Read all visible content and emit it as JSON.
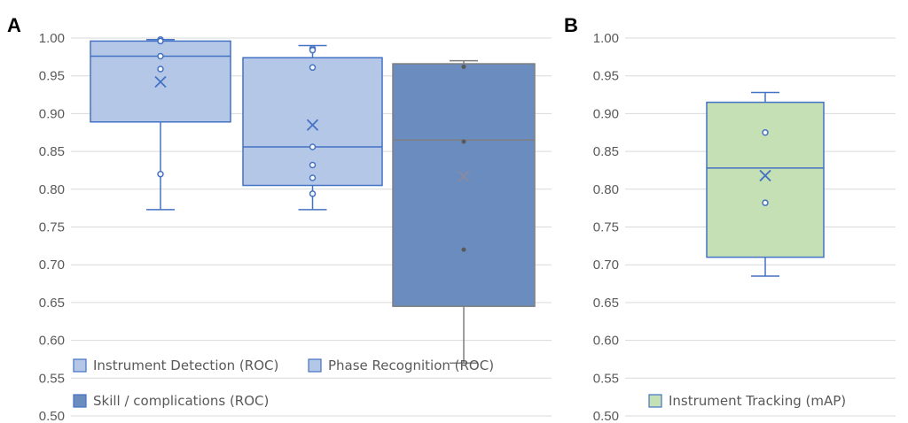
{
  "chart_data": [
    {
      "panel": "A",
      "type": "box",
      "ylim": [
        0.5,
        1.0
      ],
      "y_ticks": [
        "1.00",
        "0.95",
        "0.90",
        "0.85",
        "0.80",
        "0.75",
        "0.70",
        "0.65",
        "0.60",
        "0.55",
        "0.50"
      ],
      "grid": true,
      "legend": "bottom-left",
      "series": [
        {
          "name": "Instrument Detection (ROC)",
          "color": "#4472c4",
          "fill": "#b4c7e7",
          "min": 0.773,
          "q1": 0.889,
          "median": 0.976,
          "q3": 0.996,
          "max": 0.998,
          "mean": 0.942,
          "points": [
            0.998,
            0.996,
            0.976,
            0.959,
            0.82
          ]
        },
        {
          "name": "Phase Recognition (ROC)",
          "color": "#4472c4",
          "fill": "#b4c7e7",
          "min": 0.773,
          "q1": 0.805,
          "median": 0.856,
          "q3": 0.974,
          "max": 0.99,
          "mean": 0.885,
          "points": [
            0.986,
            0.984,
            0.961,
            0.856,
            0.832,
            0.815,
            0.794
          ]
        },
        {
          "name": "Skill / complications (ROC)",
          "color": "#7f7f7f",
          "fill": "#6b8cbe",
          "min": 0.57,
          "q1": 0.645,
          "median": 0.865,
          "q3": 0.966,
          "max": 0.97,
          "mean": 0.817,
          "points": [
            0.962,
            0.863,
            0.72
          ]
        }
      ]
    },
    {
      "panel": "B",
      "type": "box",
      "ylim": [
        0.5,
        1.0
      ],
      "y_ticks": [
        "1.00",
        "0.95",
        "0.90",
        "0.85",
        "0.80",
        "0.75",
        "0.70",
        "0.65",
        "0.60",
        "0.55",
        "0.50"
      ],
      "grid": true,
      "legend": "bottom-left",
      "series": [
        {
          "name": "Instrument Tracking (mAP)",
          "color": "#4472c4",
          "fill": "#c5e0b4",
          "min": 0.685,
          "q1": 0.71,
          "median": 0.828,
          "q3": 0.915,
          "max": 0.928,
          "mean": 0.818,
          "points": [
            0.875,
            0.782
          ]
        }
      ]
    }
  ]
}
